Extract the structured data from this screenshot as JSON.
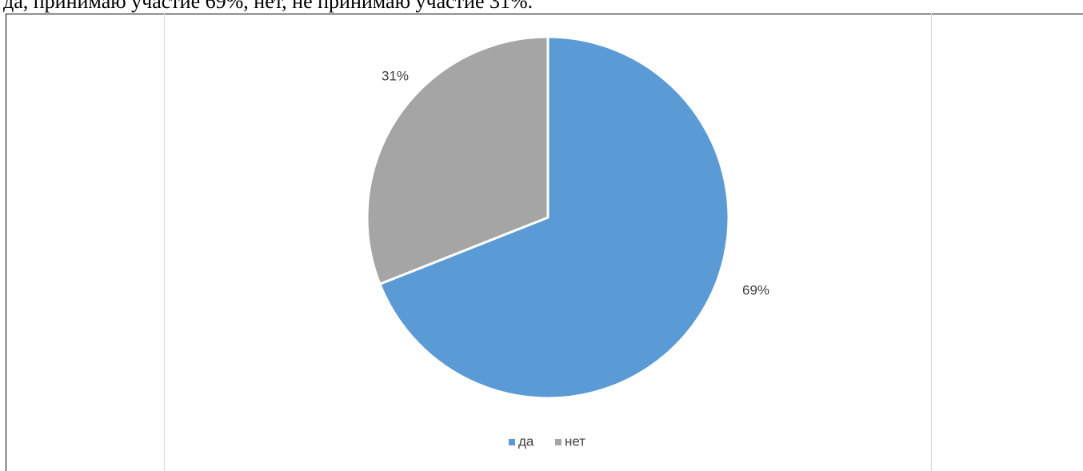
{
  "document": {
    "text_line": "да, принимаю участие 69%, нет, не принимаю участие 31%."
  },
  "chart_data": {
    "type": "pie",
    "title": "",
    "categories": [
      "да",
      "нет"
    ],
    "values": [
      69,
      31
    ],
    "data_labels": [
      "69%",
      "31%"
    ],
    "colors": [
      "#5b9bd5",
      "#a5a5a5"
    ],
    "start_angle": "12 o'clock, clockwise",
    "legend": {
      "position": "bottom",
      "items": [
        "да",
        "нет"
      ]
    }
  }
}
